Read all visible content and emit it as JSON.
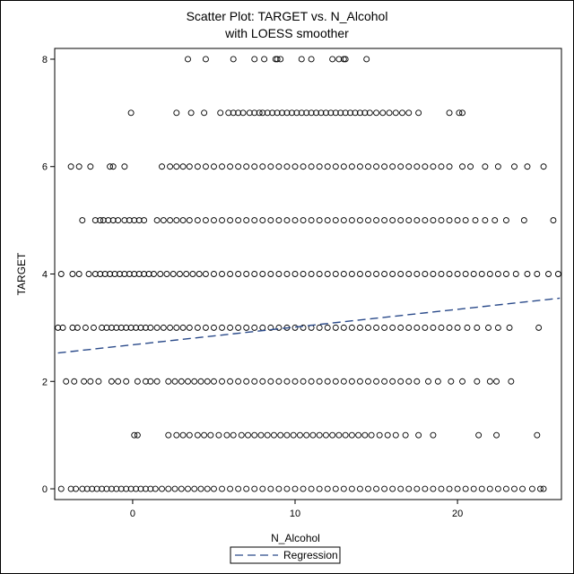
{
  "chart_data": {
    "type": "scatter",
    "title": "Scatter Plot: TARGET vs. N_Alcohol",
    "subtitle": "with LOESS smoother",
    "xlabel": "N_Alcohol",
    "ylabel": "TARGET",
    "xlim": [
      -4.8,
      26.4
    ],
    "ylim": [
      -0.2,
      8.2
    ],
    "xticks": [
      0,
      10,
      20
    ],
    "yticks": [
      0,
      2,
      4,
      6,
      8
    ],
    "grid": false,
    "legend": {
      "position": "bottom-center",
      "entries": [
        "Regression"
      ]
    },
    "points": {
      "marker": "open-circle",
      "color": "#000000",
      "rows": [
        {
          "y": 8,
          "x": [
            3.4,
            4.5,
            6.2,
            7.5,
            8.1,
            8.8,
            8.9,
            9.1,
            10.4,
            11.0,
            12.3,
            12.7,
            13.0,
            13.1,
            14.4
          ]
        },
        {
          "y": 7,
          "x": [
            -0.1,
            2.7,
            3.6,
            4.4,
            5.4,
            5.9,
            6.2,
            6.5,
            6.8,
            7.2,
            7.5,
            7.8,
            8.0,
            8.3,
            8.6,
            8.9,
            9.2,
            9.5,
            9.8,
            10.1,
            10.4,
            10.7,
            11.0,
            11.3,
            11.6,
            11.9,
            12.2,
            12.5,
            12.8,
            13.1,
            13.4,
            13.7,
            14.0,
            14.3,
            14.6,
            15.0,
            15.4,
            15.8,
            16.2,
            16.6,
            17.0,
            17.6,
            19.5,
            20.1,
            20.3
          ]
        },
        {
          "y": 6,
          "x": [
            -3.8,
            -3.3,
            -2.6,
            -1.4,
            -1.2,
            -0.5,
            1.8,
            2.3,
            2.7,
            3.1,
            3.5,
            4.0,
            4.5,
            5.0,
            5.5,
            6.0,
            6.5,
            7.0,
            7.5,
            8.0,
            8.5,
            9.0,
            9.5,
            10.0,
            10.5,
            11.0,
            11.5,
            12.0,
            12.5,
            13.0,
            13.5,
            14.0,
            14.5,
            15.0,
            15.5,
            16.0,
            16.5,
            17.0,
            17.5,
            18.0,
            18.5,
            19.0,
            19.5,
            20.3,
            20.8,
            21.7,
            22.5,
            23.5,
            24.3,
            25.3
          ]
        },
        {
          "y": 5,
          "x": [
            -3.1,
            -2.3,
            -2.0,
            -1.8,
            -1.5,
            -1.2,
            -0.9,
            -0.5,
            -0.2,
            0.1,
            0.4,
            0.7,
            1.5,
            1.9,
            2.3,
            2.7,
            3.1,
            3.5,
            4.0,
            4.5,
            5.0,
            5.5,
            6.0,
            6.5,
            7.0,
            7.5,
            8.0,
            8.5,
            9.0,
            9.5,
            10.0,
            10.5,
            11.0,
            11.5,
            12.0,
            12.5,
            13.0,
            13.5,
            14.0,
            14.5,
            15.0,
            15.5,
            16.0,
            16.5,
            17.0,
            17.5,
            18.0,
            18.5,
            19.0,
            19.5,
            20.0,
            20.5,
            21.1,
            21.7,
            22.3,
            23.0,
            24.1,
            25.9
          ]
        },
        {
          "y": 4,
          "x": [
            -4.4,
            -3.7,
            -3.3,
            -2.7,
            -2.3,
            -2.0,
            -1.7,
            -1.4,
            -1.1,
            -0.8,
            -0.5,
            -0.2,
            0.1,
            0.4,
            0.7,
            1.0,
            1.3,
            1.7,
            2.1,
            2.5,
            2.9,
            3.3,
            3.7,
            4.1,
            4.5,
            5.0,
            5.5,
            6.0,
            6.5,
            7.0,
            7.5,
            8.0,
            8.5,
            9.0,
            9.5,
            10.0,
            10.5,
            11.0,
            11.5,
            12.0,
            12.5,
            13.0,
            13.5,
            14.0,
            14.5,
            15.0,
            15.5,
            16.0,
            16.5,
            17.0,
            17.5,
            18.0,
            18.5,
            19.0,
            19.5,
            20.0,
            20.5,
            21.0,
            21.5,
            22.0,
            22.5,
            23.0,
            23.6,
            24.3,
            24.9,
            25.6,
            26.2
          ]
        },
        {
          "y": 3,
          "x": [
            -4.6,
            -4.3,
            -3.7,
            -3.4,
            -2.9,
            -2.4,
            -1.9,
            -1.6,
            -1.3,
            -1.0,
            -0.7,
            -0.4,
            -0.1,
            0.2,
            0.5,
            0.8,
            1.1,
            1.5,
            1.9,
            2.3,
            2.7,
            3.1,
            3.5,
            4.0,
            4.5,
            5.0,
            5.5,
            6.0,
            6.5,
            7.0,
            7.5,
            8.0,
            8.5,
            9.0,
            9.5,
            10.0,
            10.5,
            11.0,
            11.5,
            12.0,
            12.5,
            13.0,
            13.5,
            14.0,
            14.5,
            15.0,
            15.5,
            16.0,
            16.5,
            17.0,
            17.5,
            18.0,
            18.5,
            19.0,
            19.5,
            20.0,
            20.6,
            21.2,
            21.9,
            22.5,
            23.2,
            25.0
          ]
        },
        {
          "y": 2,
          "x": [
            -4.1,
            -3.6,
            -3.0,
            -2.6,
            -2.1,
            -1.3,
            -0.9,
            -0.4,
            0.3,
            0.8,
            1.1,
            1.5,
            2.2,
            2.6,
            3.0,
            3.4,
            3.8,
            4.2,
            4.6,
            5.0,
            5.5,
            6.0,
            6.5,
            7.0,
            7.5,
            8.0,
            8.5,
            9.0,
            9.5,
            10.0,
            10.5,
            11.0,
            11.5,
            12.0,
            12.5,
            13.0,
            13.5,
            14.0,
            14.5,
            15.0,
            15.5,
            16.0,
            16.5,
            17.0,
            17.5,
            18.2,
            18.8,
            19.6,
            20.3,
            21.2,
            22.0,
            22.4,
            23.3
          ]
        },
        {
          "y": 1,
          "x": [
            0.1,
            0.3,
            2.2,
            2.7,
            3.1,
            3.5,
            4.0,
            4.4,
            4.8,
            5.3,
            5.8,
            6.2,
            6.7,
            7.1,
            7.5,
            7.9,
            8.3,
            8.7,
            9.1,
            9.5,
            9.9,
            10.3,
            10.7,
            11.1,
            11.5,
            11.9,
            12.3,
            12.7,
            13.1,
            13.5,
            13.9,
            14.3,
            14.7,
            15.2,
            15.7,
            16.2,
            16.8,
            17.6,
            18.5,
            21.3,
            22.4,
            24.9
          ]
        },
        {
          "y": 0,
          "x": [
            -4.4,
            -3.8,
            -3.5,
            -3.1,
            -2.8,
            -2.5,
            -2.2,
            -1.9,
            -1.6,
            -1.3,
            -1.0,
            -0.7,
            -0.4,
            -0.1,
            0.2,
            0.5,
            0.8,
            1.1,
            1.4,
            1.8,
            2.2,
            2.6,
            3.0,
            3.4,
            3.8,
            4.2,
            4.6,
            5.0,
            5.5,
            6.0,
            6.5,
            7.0,
            7.5,
            8.0,
            8.5,
            9.0,
            9.5,
            10.0,
            10.5,
            11.0,
            11.5,
            12.0,
            12.5,
            13.0,
            13.5,
            14.0,
            14.5,
            15.0,
            15.5,
            16.0,
            16.5,
            17.0,
            17.5,
            18.0,
            18.5,
            19.0,
            19.5,
            20.0,
            20.5,
            21.0,
            21.5,
            22.0,
            22.5,
            23.0,
            23.5,
            24.0,
            24.6,
            25.1,
            25.3
          ]
        }
      ]
    },
    "regression": {
      "name": "Regression",
      "style": "dashed",
      "color": "#2a4a8a",
      "x": [
        -4.6,
        26.3
      ],
      "y": [
        2.53,
        3.55
      ]
    }
  }
}
